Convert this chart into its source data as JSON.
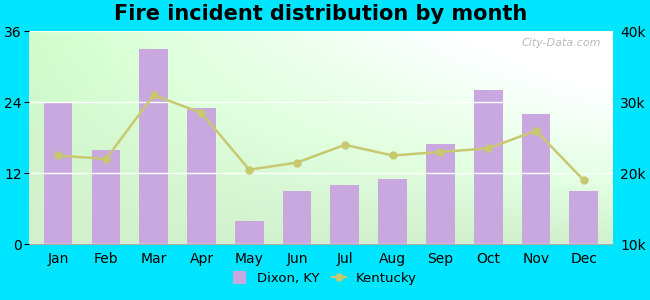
{
  "title": "Fire incident distribution by month",
  "months": [
    "Jan",
    "Feb",
    "Mar",
    "Apr",
    "May",
    "Jun",
    "Jul",
    "Aug",
    "Sep",
    "Oct",
    "Nov",
    "Dec"
  ],
  "dixon_values": [
    24,
    16,
    33,
    23,
    4,
    9,
    10,
    11,
    17,
    26,
    22,
    9
  ],
  "kentucky_values": [
    22500,
    22000,
    31000,
    28500,
    20500,
    21500,
    24000,
    22500,
    23000,
    23500,
    26000,
    19000
  ],
  "bar_color": "#c9a8e0",
  "line_color": "#c8c870",
  "left_ylim": [
    0,
    36
  ],
  "right_ylim": [
    10000,
    40000
  ],
  "left_yticks": [
    0,
    12,
    24,
    36
  ],
  "right_yticks": [
    10000,
    20000,
    30000,
    40000
  ],
  "right_yticklabels": [
    "10k",
    "20k",
    "30k",
    "40k"
  ],
  "bg_color_topleft": "#d8f0d0",
  "bg_color_topright": "#f8fff8",
  "bg_color_bottom": "#c8ecc0",
  "outer_background": "#00e5ff",
  "title_fontsize": 15,
  "axis_fontsize": 10,
  "legend_labels": [
    "Dixon, KY",
    "Kentucky"
  ],
  "watermark": "City-Data.com"
}
